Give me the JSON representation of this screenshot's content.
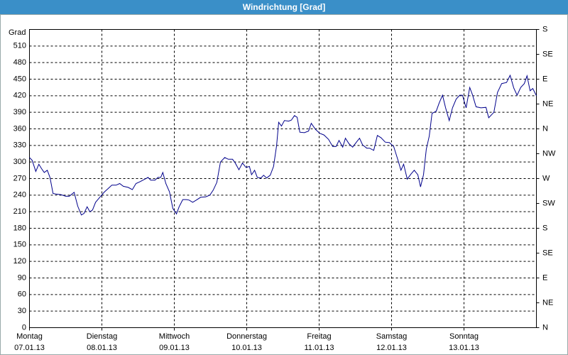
{
  "chart_data": {
    "type": "line",
    "title": "Windrichtung [Grad]",
    "y_label": "Grad",
    "xlim": [
      0,
      168
    ],
    "xticks": [
      {
        "value": 0,
        "label": "Montag"
      },
      {
        "value": 24,
        "label": "Dienstag"
      },
      {
        "value": 48,
        "label": "Mittwoch"
      },
      {
        "value": 72,
        "label": "Donnerstag"
      },
      {
        "value": 96,
        "label": "Freitag"
      },
      {
        "value": 120,
        "label": "Samstag"
      },
      {
        "value": 144,
        "label": "Sonntag"
      }
    ],
    "xtick_dates": [
      "07.01.13",
      "08.01.13",
      "09.01.13",
      "10.01.13",
      "11.01.13",
      "12.01.13",
      "13.01.13"
    ],
    "ylim": [
      0,
      540
    ],
    "yticks": [
      0,
      30,
      60,
      90,
      120,
      150,
      180,
      210,
      240,
      270,
      300,
      330,
      360,
      390,
      420,
      450,
      480,
      510
    ],
    "y2lim": [
      0,
      540
    ],
    "y2ticks": [
      {
        "value": 0,
        "label": "N"
      },
      {
        "value": 45,
        "label": "NE"
      },
      {
        "value": 90,
        "label": "E"
      },
      {
        "value": 135,
        "label": "SE"
      },
      {
        "value": 180,
        "label": "S"
      },
      {
        "value": 225,
        "label": "SW"
      },
      {
        "value": 270,
        "label": "W"
      },
      {
        "value": 315,
        "label": "NW"
      },
      {
        "value": 360,
        "label": "N"
      },
      {
        "value": 405,
        "label": "NE"
      },
      {
        "value": 450,
        "label": "E"
      },
      {
        "value": 495,
        "label": "SE"
      },
      {
        "value": 540,
        "label": "S"
      }
    ],
    "grid": true,
    "series": [
      {
        "color": "#00008b",
        "x": [
          0,
          0.9,
          2.1,
          3.1,
          4,
          4.9,
          5.9,
          6.8,
          7.8,
          8.7,
          10.4,
          12,
          13.2,
          14.8,
          16,
          17.2,
          18.1,
          19.1,
          20,
          20.9,
          21.9,
          23.3,
          24.7,
          26.1,
          27.3,
          28.7,
          29.9,
          31.1,
          32.7,
          34.1,
          35.3,
          36.5,
          37.9,
          39.3,
          40.2,
          41.6,
          42.6,
          43.5,
          44.2,
          45.2,
          46.4,
          47.5,
          48.7,
          49.6,
          50.8,
          52,
          52.9,
          54.1,
          55.3,
          56.7,
          58.4,
          59.8,
          60.9,
          62.1,
          63.3,
          64.7,
          65.9,
          67.3,
          68.2,
          69.4,
          70.6,
          71.8,
          72.9,
          73.6,
          74.6,
          75.5,
          76.7,
          77.6,
          78.6,
          79.8,
          80.9,
          81.9,
          82.6,
          83.5,
          84.5,
          85.9,
          86.8,
          87.8,
          88.7,
          89.6,
          91.1,
          92.5,
          93.4,
          94.8,
          96.2,
          97.6,
          99.1,
          100.5,
          101.6,
          102.6,
          103.8,
          104.7,
          105.9,
          107.1,
          108.5,
          109.4,
          110.4,
          111.8,
          112.7,
          114.1,
          115.3,
          116.5,
          117.9,
          119.3,
          120.7,
          122.1,
          123.1,
          124,
          125.2,
          126.4,
          127.5,
          128.7,
          129.6,
          130.6,
          131.5,
          132.5,
          133.4,
          134.8,
          135.8,
          136.9,
          137.9,
          139.1,
          140.2,
          141.4,
          142.6,
          143.5,
          144.7,
          145.9,
          146.8,
          148,
          149.6,
          151.3,
          152.2,
          153.9,
          155.1,
          156.5,
          158.1,
          159.3,
          160.5,
          161.6,
          162.8,
          164,
          164.9,
          165.9,
          166.8,
          168
        ],
        "values": [
          308,
          303,
          283,
          296,
          288,
          281,
          285,
          272,
          243,
          242,
          241,
          238,
          238,
          245,
          220,
          204,
          207,
          219,
          210,
          213,
          227,
          236,
          245,
          252,
          258,
          258,
          261,
          256,
          254,
          250,
          261,
          264,
          268,
          272,
          267,
          267,
          272,
          272,
          281,
          261,
          246,
          216,
          206,
          219,
          232,
          232,
          231,
          227,
          231,
          236,
          237,
          240,
          249,
          263,
          300,
          308,
          305,
          305,
          298,
          286,
          298,
          290,
          292,
          277,
          285,
          272,
          271,
          276,
          271,
          276,
          292,
          330,
          372,
          365,
          375,
          374,
          376,
          384,
          381,
          354,
          353,
          356,
          370,
          359,
          352,
          349,
          341,
          328,
          328,
          339,
          327,
          343,
          333,
          327,
          337,
          343,
          331,
          325,
          325,
          321,
          348,
          344,
          336,
          335,
          328,
          304,
          285,
          296,
          269,
          278,
          285,
          277,
          255,
          277,
          323,
          347,
          388,
          392,
          407,
          421,
          398,
          375,
          398,
          414,
          421,
          421,
          398,
          435,
          422,
          400,
          398,
          399,
          380,
          390,
          426,
          442,
          444,
          457,
          434,
          421,
          435,
          442,
          456,
          429,
          433,
          420
        ]
      }
    ]
  }
}
